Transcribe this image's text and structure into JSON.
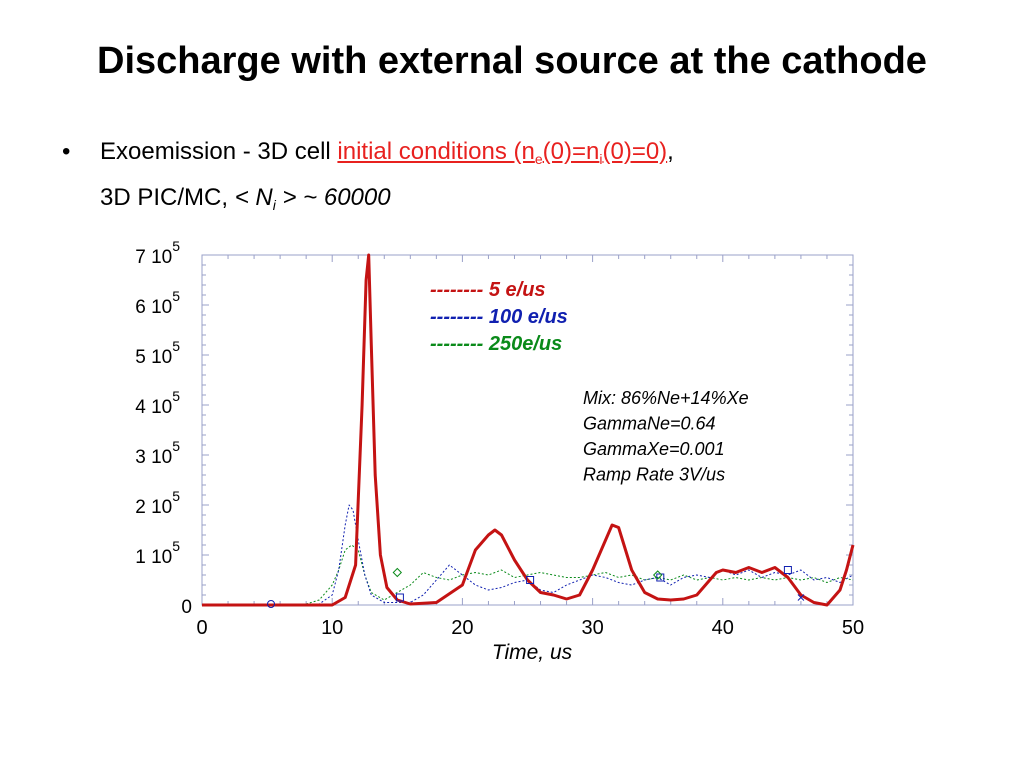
{
  "slide": {
    "title": "Discharge with external source at the cathode",
    "bullet_char": "•",
    "line1_prefix": "Exoemission - 3D cell ",
    "line1_link_a": "initial conditions (n",
    "line1_link_sub_e": "e",
    "line1_link_b": "(0)=n",
    "line1_link_sub_i": "i",
    "line1_link_c": "(0)=0)",
    "line1_suffix": ",",
    "line2_prefix": "3D PIC/MC,  ",
    "line2_lt": "< N",
    "line2_sub": "i",
    "line2_rest": " > ~ 60000"
  },
  "colors": {
    "red": "#c41313",
    "blue": "#1020b0",
    "green": "#0a8a1a",
    "link": "#e8211f",
    "axis": "#9aa0c8"
  },
  "chart_data": {
    "type": "line",
    "xlabel": "Time, us",
    "xlim": [
      0,
      50
    ],
    "ylim": [
      0,
      700000
    ],
    "x_ticks": [
      0,
      10,
      20,
      30,
      40,
      50
    ],
    "y_ticks": [
      {
        "value": 0,
        "label": "0",
        "exp": ""
      },
      {
        "value": 100000,
        "label": "1 10",
        "exp": "5"
      },
      {
        "value": 200000,
        "label": "2 10",
        "exp": "5"
      },
      {
        "value": 300000,
        "label": "3 10",
        "exp": "5"
      },
      {
        "value": 400000,
        "label": "4 10",
        "exp": "5"
      },
      {
        "value": 500000,
        "label": "5 10",
        "exp": "5"
      },
      {
        "value": 600000,
        "label": "6 10",
        "exp": "5"
      },
      {
        "value": 700000,
        "label": "7 10",
        "exp": "5"
      }
    ],
    "legend": [
      {
        "text": "-------- 5 e/us",
        "color": "#c41313"
      },
      {
        "text": "-------- 100 e/us",
        "color": "#1020b0"
      },
      {
        "text": "-------- 250e/us",
        "color": "#0a8a1a"
      }
    ],
    "annotation": [
      "Mix: 86%Ne+14%Xe",
      "GammaNe=0.64",
      "GammaXe=0.001",
      "Ramp Rate 3V/us"
    ],
    "series": [
      {
        "name": "5 e/us",
        "color": "#c41313",
        "x": [
          0,
          2,
          5,
          8,
          10,
          11,
          11.8,
          12.3,
          12.6,
          12.8,
          13.0,
          13.3,
          13.7,
          14.2,
          15,
          16,
          18,
          20,
          21,
          22,
          22.5,
          23,
          24,
          25,
          26,
          27,
          28,
          29,
          30,
          31,
          31.5,
          32,
          33,
          34,
          35,
          36,
          37,
          38,
          39,
          39.5,
          40,
          41,
          42,
          43,
          44,
          45,
          46,
          47,
          48,
          49,
          49.5,
          50
        ],
        "y": [
          0,
          0,
          0,
          0,
          0,
          15000,
          80000,
          400000,
          650000,
          700000,
          520000,
          260000,
          100000,
          35000,
          10000,
          2000,
          5000,
          40000,
          110000,
          140000,
          150000,
          140000,
          90000,
          50000,
          25000,
          20000,
          12000,
          20000,
          70000,
          130000,
          160000,
          155000,
          70000,
          25000,
          12000,
          10000,
          12000,
          20000,
          50000,
          65000,
          70000,
          65000,
          75000,
          65000,
          75000,
          55000,
          20000,
          5000,
          0,
          30000,
          70000,
          120000
        ]
      },
      {
        "name": "100 e/us",
        "color": "#1020b0",
        "x": [
          0,
          5,
          8,
          9,
          10,
          10.5,
          11,
          11.3,
          11.6,
          12,
          12.5,
          13,
          14,
          16,
          17,
          18,
          19,
          20,
          21,
          22,
          23,
          24,
          25,
          26,
          27,
          28,
          29,
          30,
          31,
          32,
          33,
          34,
          35,
          36,
          37,
          38,
          39,
          40,
          41,
          42,
          43,
          44,
          45,
          46,
          47,
          48,
          49,
          50
        ],
        "y": [
          0,
          0,
          0,
          2000,
          20000,
          70000,
          160000,
          200000,
          190000,
          130000,
          60000,
          20000,
          5000,
          5000,
          20000,
          50000,
          80000,
          60000,
          40000,
          30000,
          35000,
          45000,
          50000,
          30000,
          25000,
          40000,
          50000,
          60000,
          55000,
          45000,
          40000,
          50000,
          55000,
          40000,
          55000,
          60000,
          55000,
          70000,
          60000,
          70000,
          55000,
          65000,
          60000,
          70000,
          50000,
          55000,
          45000,
          60000
        ]
      },
      {
        "name": "250e/us",
        "color": "#0a8a1a",
        "x": [
          0,
          5,
          8,
          9,
          10,
          10.5,
          11,
          11.5,
          12,
          12.5,
          13,
          14,
          16,
          17,
          18,
          19,
          20,
          21,
          22,
          23,
          24,
          25,
          26,
          27,
          28,
          29,
          30,
          31,
          32,
          33,
          34,
          35,
          36,
          37,
          38,
          39,
          40,
          41,
          42,
          43,
          44,
          45,
          46,
          47,
          48,
          49,
          50
        ],
        "y": [
          0,
          0,
          2000,
          10000,
          40000,
          70000,
          110000,
          120000,
          110000,
          60000,
          25000,
          10000,
          40000,
          65000,
          55000,
          50000,
          60000,
          65000,
          60000,
          70000,
          55000,
          60000,
          65000,
          60000,
          55000,
          55000,
          60000,
          65000,
          55000,
          60000,
          50000,
          55000,
          50000,
          60000,
          50000,
          55000,
          50000,
          55000,
          50000,
          55000,
          50000,
          55000,
          50000,
          55000,
          45000,
          55000,
          50000
        ]
      }
    ]
  }
}
